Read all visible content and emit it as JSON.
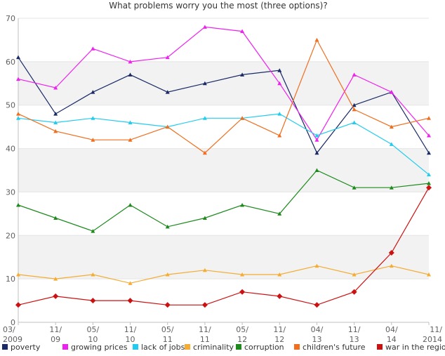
{
  "chart_data": {
    "type": "line",
    "title": "What problems worry you the most (three options)?",
    "categories": [
      [
        "03/",
        "2009"
      ],
      [
        "11/",
        "09"
      ],
      [
        "05/",
        "10"
      ],
      [
        "11/",
        "10"
      ],
      [
        "05/",
        "11"
      ],
      [
        "11/",
        "11"
      ],
      [
        "05/",
        "12"
      ],
      [
        "11/",
        "12"
      ],
      [
        "04/",
        "13"
      ],
      [
        "11/",
        "13"
      ],
      [
        "04/",
        "14"
      ],
      [
        "11/",
        "2014"
      ]
    ],
    "ylim": [
      0,
      70
    ],
    "yticks": [
      0,
      10,
      20,
      30,
      40,
      50,
      60,
      70
    ],
    "ytick_labels": [
      "0",
      "10",
      "20",
      "30",
      "40",
      "50",
      "60",
      "70"
    ],
    "xlabel": "",
    "ylabel": "",
    "legend_position": "bottom",
    "series": [
      {
        "name": "poverty",
        "color": "#1a2a66",
        "marker": "triangle",
        "values": [
          61,
          48,
          53,
          57,
          53,
          55,
          57,
          58,
          39,
          50,
          53,
          39
        ]
      },
      {
        "name": "growing prices",
        "color": "#ee22ee",
        "marker": "triangle",
        "values": [
          56,
          54,
          63,
          60,
          61,
          68,
          67,
          55,
          42,
          57,
          53,
          43
        ]
      },
      {
        "name": "lack of jobs",
        "color": "#22ccee",
        "marker": "triangle",
        "values": [
          47,
          46,
          47,
          46,
          45,
          47,
          47,
          48,
          43,
          46,
          41,
          34
        ]
      },
      {
        "name": "criminality",
        "color": "#f4ac33",
        "marker": "triangle",
        "values": [
          11,
          10,
          11,
          9,
          11,
          12,
          11,
          11,
          13,
          11,
          13,
          11
        ]
      },
      {
        "name": "corruption",
        "color": "#1e8a1e",
        "marker": "triangle",
        "values": [
          27,
          24,
          21,
          27,
          22,
          24,
          27,
          25,
          35,
          31,
          31,
          32
        ]
      },
      {
        "name": "children's future",
        "color": "#f06e1e",
        "marker": "triangle",
        "values": [
          48,
          44,
          42,
          42,
          45,
          39,
          47,
          43,
          65,
          49,
          45,
          47
        ]
      },
      {
        "name": "war in the region",
        "color": "#cc1111",
        "marker": "diamond",
        "values": [
          4,
          6,
          5,
          5,
          4,
          4,
          7,
          6,
          4,
          7,
          16,
          31
        ]
      }
    ]
  }
}
